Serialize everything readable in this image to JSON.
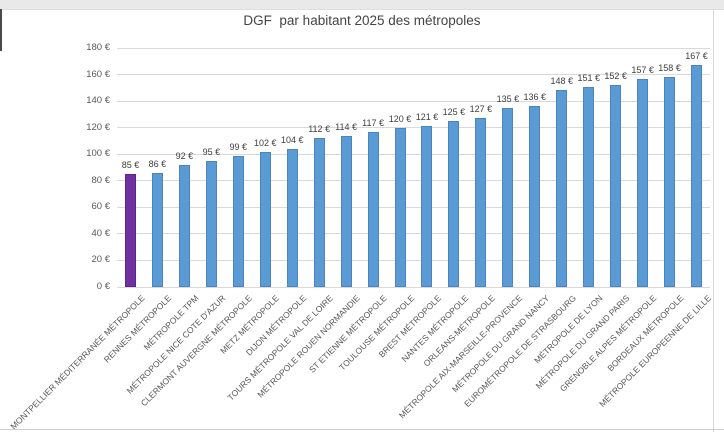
{
  "chart_data": {
    "type": "bar",
    "title": "DGF  par habitant 2025 des métropoles",
    "categories": [
      "MONTPELLIER MÉDITERRANÉE MÉTROPOLE",
      "RENNES MÉTROPOLE",
      "MÉTROPOLE TPM",
      "MÉTROPOLE NICE COTE D'AZUR",
      "CLERMONT AUVERGNE MÉTROPOLE",
      "METZ MÉTROPOLE",
      "DIJON MÉTROPOLE",
      "TOURS MÉTROPOLE VAL DE LOIRE",
      "MÉTROPOLE ROUEN NORMANDIE",
      "ST ETIENNE MÉTROPOLE",
      "TOULOUSE MÉTROPOLE",
      "BREST MÉTROPOLE",
      "NANTES MÉTROPOLE",
      "ORLEANS-MÉTROPOLE",
      "MÉTROPOLE AIX-MARSEILLE-PROVENCE",
      "MÉTROPOLE DU GRAND NANCY",
      "EUROMÉTROPOLE DE STRASBOURG",
      "MÉTROPOLE DE LYON",
      "MÉTROPOLE DU GRAND PARIS",
      "GRENOBLE ALPES MÉTROPOLE",
      "BORDEAUX MÉTROPOLE",
      "MÉTROPOLE EUROPEENNE DE LILLE"
    ],
    "values": [
      85,
      86,
      92,
      95,
      99,
      102,
      104,
      112,
      114,
      117,
      120,
      121,
      125,
      127,
      135,
      136,
      148,
      151,
      152,
      157,
      158,
      167
    ],
    "value_labels": [
      "85 €",
      "86 €",
      "92 €",
      "95 €",
      "99 €",
      "102 €",
      "104 €",
      "112 €",
      "114 €",
      "117 €",
      "120 €",
      "121 €",
      "125 €",
      "127 €",
      "135 €",
      "136 €",
      "148 €",
      "151 €",
      "152 €",
      "157 €",
      "158 €",
      "167 €"
    ],
    "xlabel": "",
    "ylabel": "",
    "ylim": [
      0,
      180
    ],
    "ytick_step": 20,
    "ytick_labels": [
      "0 €",
      "20 €",
      "40 €",
      "60 €",
      "80 €",
      "100 €",
      "120 €",
      "140 €",
      "160 €",
      "180 €"
    ],
    "grid": true,
    "legend_position": "none",
    "bar_color": "#5b9bd5",
    "bar_border_color": "#4a86bd",
    "highlight_index": 0,
    "highlight_color": "#7030a0",
    "highlight_border_color": "#5d2585",
    "gridline_color": "#d9d9d9"
  }
}
